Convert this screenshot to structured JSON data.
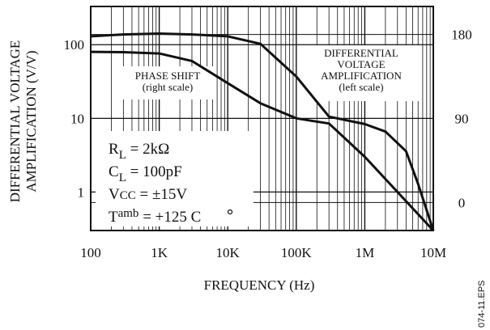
{
  "chart_data": {
    "type": "line",
    "xlabel": "FREQUENCY (Hz)",
    "ylabel_left": [
      "DIFFERENTIAL VOLTAGE",
      "AMPLIFICATION (V/V)"
    ],
    "x_scale": "log",
    "xlim": [
      100,
      10000000
    ],
    "x_ticks": [
      100,
      1000,
      10000,
      100000,
      1000000,
      10000000
    ],
    "x_tick_labels": [
      "100",
      "1K",
      "10K",
      "100K",
      "1M",
      "10M"
    ],
    "left_scale": "log",
    "ylim_left": [
      0.3,
      330
    ],
    "y_ticks_left": [
      1,
      10,
      100
    ],
    "y_tick_labels_left": [
      "1",
      "10",
      "100"
    ],
    "ylim_right": [
      -30,
      210
    ],
    "y_ticks_right": [
      0,
      90,
      180
    ],
    "y_tick_labels_right": [
      "0",
      "90",
      "180"
    ],
    "grid": true,
    "series": [
      {
        "name_lines": [
          "DIFFERENTIAL",
          "VOLTAGE",
          "AMPLIFICATION",
          "(left scale)"
        ],
        "axis": "left",
        "x": [
          100,
          300,
          1000,
          3000,
          10000,
          30000,
          100000,
          300000,
          1000000,
          3000000,
          10000000
        ],
        "y": [
          80,
          79,
          76,
          60,
          30,
          16,
          10,
          8.5,
          3,
          1,
          0.3
        ]
      },
      {
        "name_lines": [
          "PHASE SHIFT",
          "(right scale)"
        ],
        "axis": "right",
        "x": [
          100,
          300,
          1000,
          3000,
          10000,
          30000,
          100000,
          300000,
          1000000,
          2000000,
          4000000,
          6000000,
          10000000
        ],
        "y": [
          178,
          180,
          181,
          180,
          178,
          170,
          135,
          92,
          84,
          76,
          55,
          20,
          -30
        ]
      }
    ],
    "annotations": [
      {
        "lines": [
          "R",
          "L",
          " = 2kΩ"
        ]
      },
      {
        "lines": [
          "C",
          "L",
          " = 100pF"
        ]
      },
      {
        "lines": [
          "V",
          "CC",
          " = ±15V"
        ]
      },
      {
        "lines": [
          "T",
          "amb",
          " = +125  C"
        ]
      }
    ],
    "file_label": "074-11.EPS"
  }
}
